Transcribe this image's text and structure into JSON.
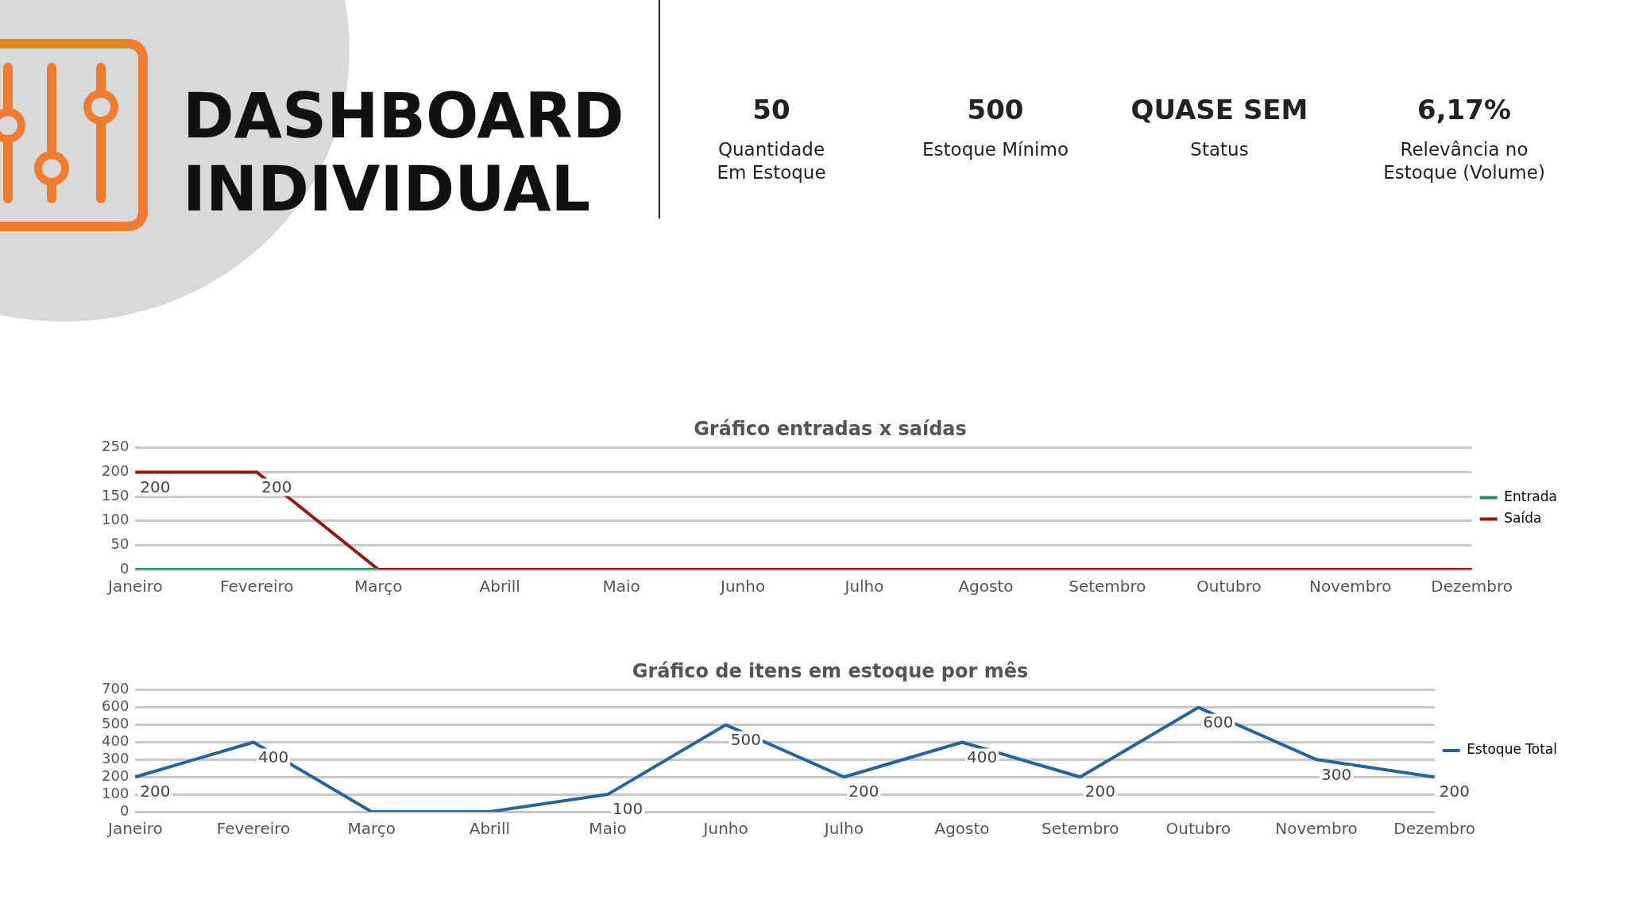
{
  "chart_data": [
    {
      "type": "other",
      "title": "DASHBOARD INDIVIDUAL",
      "annotations": [
        "50",
        "Quantidade Em Estoque",
        "500",
        "Estoque Mínimo",
        "QUASE SEM",
        "Status",
        "6,17%",
        "Relevância no Estoque (Volume)"
      ]
    },
    {
      "type": "line",
      "title": "Gráfico entradas x saídas",
      "categories": [
        "Janeiro",
        "Fevereiro",
        "Março",
        "Abrill",
        "Maio",
        "Junho",
        "Julho",
        "Agosto",
        "Setembro",
        "Outubro",
        "Novembro",
        "Dezembro"
      ],
      "series": [
        {
          "name": "Entrada",
          "color": "#2e8b57",
          "values": [
            0,
            0,
            0,
            null,
            null,
            null,
            null,
            null,
            null,
            null,
            null,
            null
          ]
        },
        {
          "name": "Saída",
          "color": "#8b1a1a",
          "values": [
            200,
            200,
            0,
            0,
            0,
            0,
            0,
            0,
            0,
            0,
            0,
            0
          ],
          "value_labels": [
            "200",
            "200",
            null,
            null,
            null,
            null,
            null,
            null,
            null,
            null,
            null,
            null
          ]
        }
      ],
      "ylim": [
        0,
        250
      ],
      "yticks": [
        0,
        50,
        100,
        150,
        200,
        250
      ],
      "grid": "y",
      "legend": "right",
      "marker": "none"
    },
    {
      "type": "line",
      "title": "Gráfico de itens em estoque por mês",
      "categories": [
        "Janeiro",
        "Fevereiro",
        "Março",
        "Abrill",
        "Maio",
        "Junho",
        "Julho",
        "Agosto",
        "Setembro",
        "Outubro",
        "Novembro",
        "Dezembro"
      ],
      "series": [
        {
          "name": "Estoque Total",
          "color": "#2a6496",
          "values": [
            200,
            400,
            0,
            0,
            100,
            500,
            200,
            400,
            200,
            600,
            300,
            200
          ],
          "value_labels": [
            "200",
            "400",
            null,
            null,
            "100",
            "500",
            "200",
            "400",
            "200",
            "600",
            "300",
            "200"
          ]
        }
      ],
      "ylim": [
        0,
        700
      ],
      "yticks": [
        0,
        100,
        200,
        300,
        400,
        500,
        600,
        700
      ],
      "grid": "y",
      "legend": "right",
      "marker": "none"
    }
  ]
}
